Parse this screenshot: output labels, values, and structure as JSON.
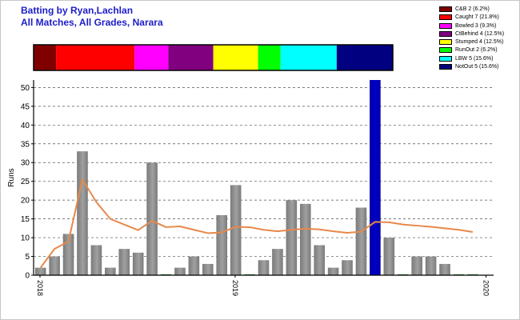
{
  "header": {
    "title": "Batting by Ryan,Lachlan",
    "subtitle": "All Matches, All Grades, Narara"
  },
  "legend": [
    {
      "label": "C&B 2 (6.2%)",
      "color": "#800000"
    },
    {
      "label": "Caught 7 (21.8%)",
      "color": "#ff0000"
    },
    {
      "label": "Bowled 3 (9.3%)",
      "color": "#ff00ff"
    },
    {
      "label": "CtBehind 4 (12.5%)",
      "color": "#800080"
    },
    {
      "label": "Stumped 4 (12.5%)",
      "color": "#ffff00"
    },
    {
      "label": "RunOut 2 (6.2%)",
      "color": "#00ff00"
    },
    {
      "label": "LBW 5 (15.6%)",
      "color": "#00ffff"
    },
    {
      "label": "NotOut 5 (15.6%)",
      "color": "#000080"
    }
  ],
  "chart_data": {
    "type": "bar",
    "ylabel": "Runs",
    "ylim": [
      0,
      52
    ],
    "yticks": [
      0,
      5,
      10,
      15,
      20,
      25,
      30,
      35,
      40,
      45,
      50
    ],
    "grid": true,
    "dismissal_bar": [
      {
        "name": "C&B",
        "count": 2,
        "color": "#800000"
      },
      {
        "name": "Caught",
        "count": 7,
        "color": "#ff0000"
      },
      {
        "name": "Bowled",
        "count": 3,
        "color": "#ff00ff"
      },
      {
        "name": "CtBehind",
        "count": 4,
        "color": "#800080"
      },
      {
        "name": "Stumped",
        "count": 4,
        "color": "#ffff00"
      },
      {
        "name": "RunOut",
        "count": 2,
        "color": "#00ff00"
      },
      {
        "name": "LBW",
        "count": 5,
        "color": "#00ffff"
      },
      {
        "name": "NotOut",
        "count": 5,
        "color": "#000080"
      }
    ],
    "innings": [
      2,
      5,
      11,
      33,
      8,
      2,
      7,
      6,
      30,
      0,
      2,
      5,
      3,
      16,
      24,
      0,
      4,
      7,
      20,
      19,
      8,
      2,
      4,
      18,
      52,
      10,
      0,
      5,
      5,
      3,
      0,
      0
    ],
    "highlight_index": 24,
    "bar_color": "#a0a0a0",
    "highlight_color": "#0000cc",
    "average_line": {
      "color": "#e8884a",
      "values": [
        2,
        7,
        9,
        25.5,
        19.5,
        15,
        13.5,
        12,
        14.5,
        12.8,
        13,
        12.1,
        11.2,
        11.4,
        12.9,
        12.8,
        12.1,
        11.7,
        12.1,
        12.4,
        12.2,
        11.7,
        11.3,
        11.6,
        14.2,
        14.1,
        13.5,
        13.2,
        12.9,
        12.5,
        12.1,
        11.5
      ]
    },
    "x_date_labels": [
      {
        "label": "2018",
        "index": 0
      },
      {
        "label": "2019",
        "index": 14
      },
      {
        "label": "2020",
        "index": 32
      }
    ]
  }
}
